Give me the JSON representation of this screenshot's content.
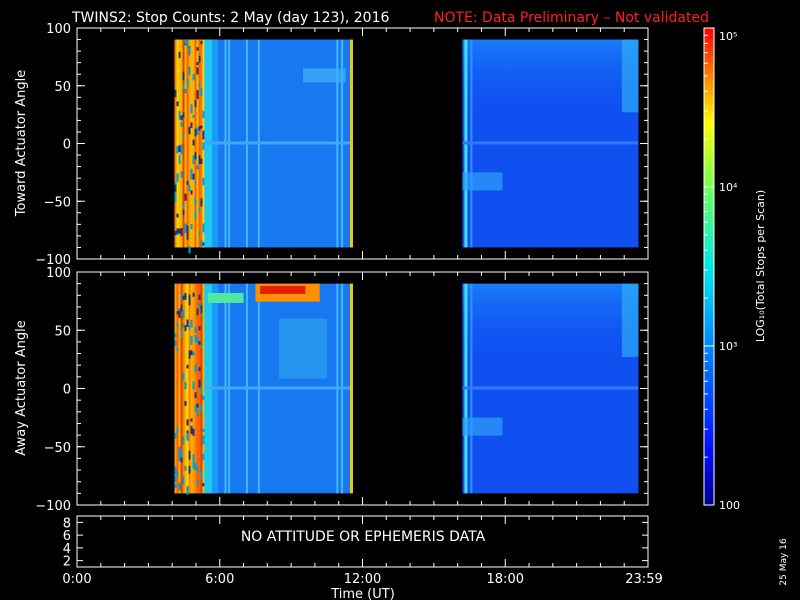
{
  "title": {
    "main": "TWINS2: Stop Counts:  2 May (day 123), 2016",
    "note": "NOTE: Data Preliminary – Not validated"
  },
  "colorbar": {
    "label": "LOG₁₀(Total Stops per Scan)",
    "tick_labels": [
      "10⁵",
      "10⁴",
      "10³",
      "100"
    ]
  },
  "no_data_message": "NO ATTITUDE OR EPHEMERIS DATA",
  "date_stamp": "25 May 16",
  "chart_data": [
    {
      "type": "heatmap",
      "panel": "top",
      "ylabel": "Toward Actuator Angle",
      "ylim": [
        -100,
        100
      ],
      "y_ticks": [
        -100,
        -50,
        0,
        50,
        100
      ],
      "y_tick_labels": [
        "−100",
        "−50",
        "0",
        "50",
        "100"
      ],
      "xlim_hours": [
        0,
        24
      ],
      "data_coverage_hours": [
        [
          4.1,
          11.6
        ],
        [
          16.2,
          23.6
        ]
      ],
      "angle_range": [
        -90,
        90
      ],
      "colorscale": "log10 Total Stops per Scan, 100 to 100000"
    },
    {
      "type": "heatmap",
      "panel": "middle",
      "ylabel": "Away Actuator Angle",
      "ylim": [
        -100,
        100
      ],
      "y_ticks": [
        -100,
        -50,
        0,
        50,
        100
      ],
      "y_tick_labels": [
        "−100",
        "−50",
        "0",
        "50",
        "100"
      ],
      "xlim_hours": [
        0,
        24
      ],
      "data_coverage_hours": [
        [
          4.1,
          11.6
        ],
        [
          16.2,
          23.6
        ]
      ],
      "angle_range": [
        -90,
        90
      ],
      "colorscale": "log10 Total Stops per Scan, 100 to 100000"
    },
    {
      "type": "line",
      "panel": "bottom",
      "ylim": [
        1,
        9
      ],
      "y_tick_labels": [
        "8",
        "6",
        "4",
        "2"
      ],
      "x_tick_labels": [
        "0:00",
        "6:00",
        "12:00",
        "18:00",
        "23:59"
      ],
      "xlabel": "Time (UT)",
      "series": []
    }
  ]
}
